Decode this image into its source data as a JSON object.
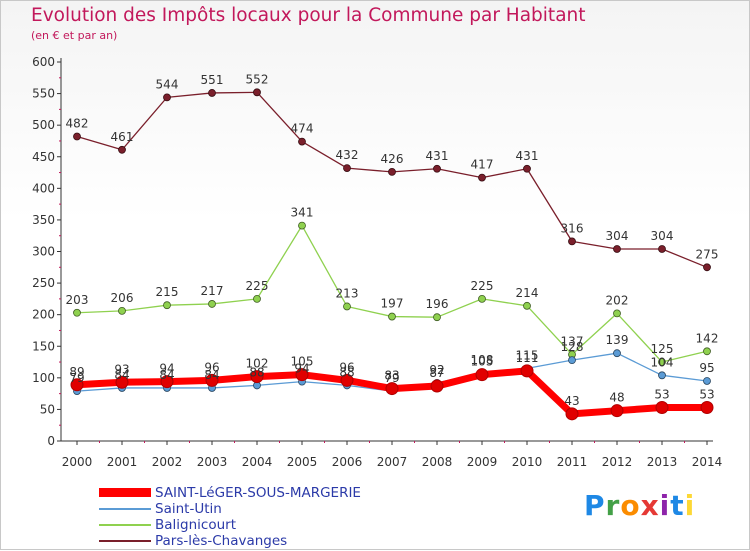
{
  "title": "Evolution des Impôts locaux pour la Commune par Habitant",
  "subtitle": "(en € et par an)",
  "brand": "Proxiti",
  "chart_data": {
    "type": "line",
    "title": "Evolution des Impôts locaux pour la Commune par Habitant",
    "ylabel": "(en € et par an)",
    "xlabel": "",
    "ylim": [
      0,
      600
    ],
    "yticks": [
      "0",
      "50",
      "100",
      "150",
      "200",
      "250",
      "300",
      "350",
      "400",
      "450",
      "500",
      "550",
      "600"
    ],
    "categories": [
      "2000",
      "2001",
      "2002",
      "2003",
      "2004",
      "2005",
      "2006",
      "2007",
      "2008",
      "2009",
      "2010",
      "2011",
      "2012",
      "2013",
      "2014"
    ],
    "series": [
      {
        "name": "Pars-lès-Chavanges",
        "color": "#7a1f2b",
        "values": [
          482,
          461,
          544,
          551,
          552,
          474,
          432,
          426,
          431,
          417,
          431,
          316,
          304,
          304,
          275
        ]
      },
      {
        "name": "Balignicourt",
        "color": "#8fd14f",
        "values": [
          203,
          206,
          215,
          217,
          225,
          341,
          213,
          197,
          196,
          225,
          214,
          137,
          202,
          125,
          142
        ]
      },
      {
        "name": "Saint-Utin",
        "color": "#5b9bd5",
        "values": [
          79,
          84,
          84,
          84,
          88,
          94,
          88,
          79,
          92,
          108,
          115,
          128,
          139,
          104,
          95
        ]
      },
      {
        "name": "SAINT-LéGER-SOUS-MARGERIE",
        "color": "#ff0000",
        "values": [
          89,
          93,
          94,
          96,
          102,
          105,
          96,
          83,
          87,
          105,
          111,
          43,
          48,
          53,
          53
        ]
      }
    ],
    "legend": {
      "position": "bottom-left",
      "entries": [
        "SAINT-LéGER-SOUS-MARGERIE",
        "Saint-Utin",
        "Balignicourt",
        "Pars-lès-Chavanges"
      ]
    },
    "grid": false
  }
}
